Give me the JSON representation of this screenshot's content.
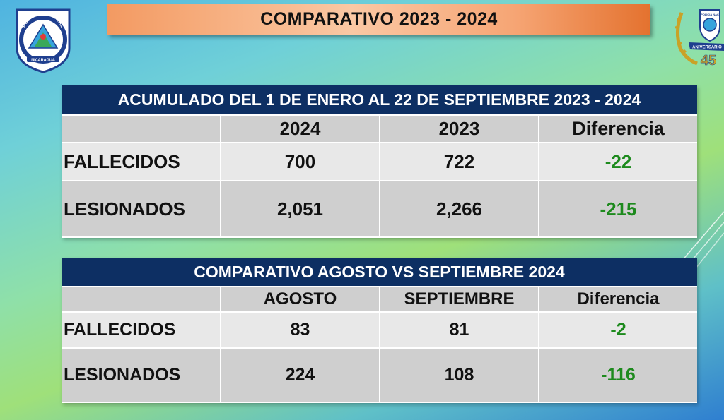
{
  "title": "COMPARATIVO  2023  - 2024",
  "logo_left": {
    "text_top": "POLICIA NACIONAL",
    "text_bottom": "NICARAGUA"
  },
  "logo_right": {
    "text_top": "POLICIA NAC",
    "text_band": "ANIVERSARIO",
    "text_number": "45"
  },
  "table1": {
    "header": "ACUMULADO DEL 1 DE ENERO AL 22 DE SEPTIEMBRE 2023 - 2024",
    "columns": [
      "",
      "2024",
      "2023",
      "Diferencia"
    ],
    "rows": [
      {
        "label": "FALLECIDOS",
        "a": "700",
        "b": "722",
        "diff": "-22"
      },
      {
        "label": "LESIONADOS",
        "a": "2,051",
        "b": "2,266",
        "diff": "-215"
      }
    ]
  },
  "table2": {
    "header": "COMPARATIVO AGOSTO VS SEPTIEMBRE 2024",
    "columns": [
      "",
      "AGOSTO",
      "SEPTIEMBRE",
      "Diferencia"
    ],
    "rows": [
      {
        "label": "FALLECIDOS",
        "a": "83",
        "b": "81",
        "diff": "-2"
      },
      {
        "label": "LESIONADOS",
        "a": "224",
        "b": "108",
        "diff": "-116"
      }
    ]
  },
  "colors": {
    "header_bg": "#0d2f63",
    "diff_green": "#1d8a1d",
    "title_orange": "#f39a62"
  }
}
